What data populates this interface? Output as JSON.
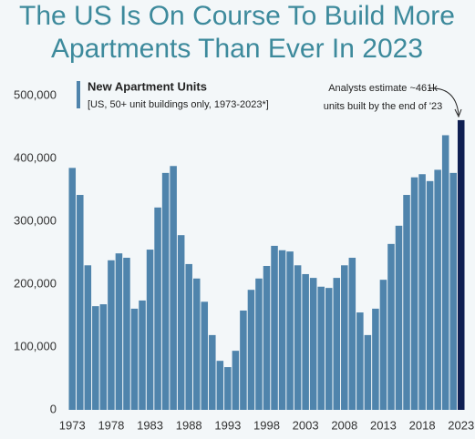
{
  "chart_data": {
    "type": "bar",
    "title_lines": [
      "The US Is On Course To Build More",
      "Apartments Than Ever In 2023"
    ],
    "legend": {
      "title": "New Apartment Units",
      "subtitle": "[US, 50+ unit buildings only, 1973-2023*]"
    },
    "annotation": [
      "Analysts estimate ~461k",
      "units built by the end of '23"
    ],
    "categories": [
      "1973",
      null,
      null,
      null,
      null,
      "1978",
      null,
      null,
      null,
      null,
      "1983",
      null,
      null,
      null,
      null,
      "1988",
      null,
      null,
      null,
      null,
      "1993",
      null,
      null,
      null,
      null,
      "1998",
      null,
      null,
      null,
      null,
      "2003",
      null,
      null,
      null,
      null,
      "2008",
      null,
      null,
      null,
      null,
      "2013",
      null,
      null,
      null,
      null,
      "2018",
      null,
      null,
      null,
      null,
      "2023"
    ],
    "values": [
      385000,
      342000,
      230000,
      165000,
      168000,
      238000,
      249000,
      242000,
      161000,
      174000,
      255000,
      322000,
      377000,
      388000,
      278000,
      232000,
      209000,
      172000,
      119000,
      78000,
      68000,
      94000,
      158000,
      191000,
      209000,
      229000,
      261000,
      254000,
      252000,
      230000,
      216000,
      210000,
      196000,
      194000,
      210000,
      230000,
      242000,
      155000,
      119000,
      161000,
      207000,
      264000,
      293000,
      342000,
      370000,
      375000,
      364000,
      382000,
      437000,
      377000,
      461000
    ],
    "colors": [
      "#4f84ac",
      "#4f84ac",
      "#4f84ac",
      "#4f84ac",
      "#4f84ac",
      "#4f84ac",
      "#4f84ac",
      "#4f84ac",
      "#4f84ac",
      "#4f84ac",
      "#4f84ac",
      "#4f84ac",
      "#4f84ac",
      "#4f84ac",
      "#4f84ac",
      "#4f84ac",
      "#4f84ac",
      "#4f84ac",
      "#4f84ac",
      "#4f84ac",
      "#4f84ac",
      "#4f84ac",
      "#4f84ac",
      "#4f84ac",
      "#4f84ac",
      "#4f84ac",
      "#4f84ac",
      "#4f84ac",
      "#4f84ac",
      "#4f84ac",
      "#4f84ac",
      "#4f84ac",
      "#4f84ac",
      "#4f84ac",
      "#4f84ac",
      "#4f84ac",
      "#4f84ac",
      "#4f84ac",
      "#4f84ac",
      "#4f84ac",
      "#4f84ac",
      "#4f84ac",
      "#4f84ac",
      "#4f84ac",
      "#4f84ac",
      "#4f84ac",
      "#4f84ac",
      "#4f84ac",
      "#4f84ac",
      "#4f84ac",
      "#0f1f52"
    ],
    "ylim": [
      0,
      500000
    ],
    "yticks": [
      0,
      {
        "value": 100000,
        "label": "100,000"
      },
      {
        "value": 200000,
        "label": "200,000"
      },
      {
        "value": 300000,
        "label": "300,000"
      },
      {
        "value": 400000,
        "label": "400,000"
      },
      {
        "value": 500000,
        "label": "500,000"
      }
    ],
    "grid": false
  }
}
